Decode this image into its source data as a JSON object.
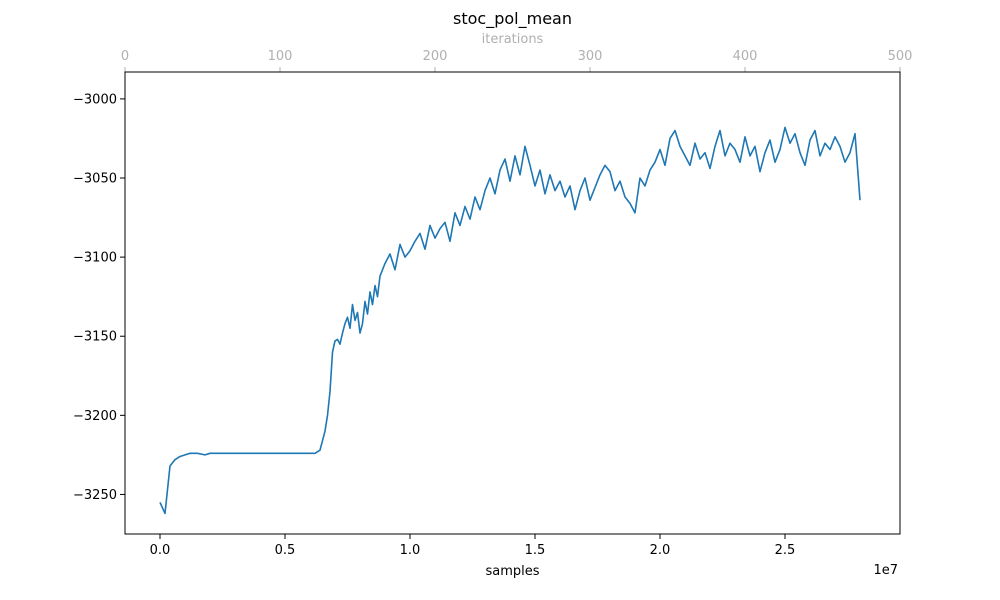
{
  "chart_data": {
    "type": "line",
    "title": "stoc_pol_mean",
    "xlabel": "samples",
    "x_offset_label": "1e7",
    "x_scale": 10000000,
    "xlim": [
      -0.14,
      2.96
    ],
    "x_ticks": [
      0.0,
      0.5,
      1.0,
      1.5,
      2.0,
      2.5
    ],
    "x_tick_labels": [
      "0.0",
      "0.5",
      "1.0",
      "1.5",
      "2.0",
      "2.5"
    ],
    "top_axis": {
      "label": "iterations",
      "lim": [
        0,
        500
      ],
      "ticks": [
        0,
        100,
        200,
        300,
        400,
        500
      ],
      "tick_labels": [
        "0",
        "100",
        "200",
        "300",
        "400",
        "500"
      ]
    },
    "ylabel": "",
    "ylim": [
      -3275,
      -2983
    ],
    "y_ticks": [
      -3250,
      -3200,
      -3150,
      -3100,
      -3050,
      -3000
    ],
    "y_tick_labels": [
      "−3250",
      "−3200",
      "−3150",
      "−3100",
      "−3050",
      "−3000"
    ],
    "grid": false,
    "color": "#1f77b4",
    "series": [
      {
        "x": [
          0.0,
          0.02,
          0.04,
          0.06,
          0.08,
          0.1,
          0.12,
          0.15,
          0.18,
          0.2,
          0.25,
          0.3,
          0.35,
          0.4,
          0.45,
          0.5,
          0.55,
          0.6,
          0.62,
          0.64,
          0.65,
          0.66,
          0.67,
          0.68,
          0.69,
          0.7,
          0.71,
          0.72,
          0.73,
          0.74,
          0.75,
          0.76,
          0.77,
          0.78,
          0.79,
          0.8,
          0.81,
          0.82,
          0.83,
          0.84,
          0.85,
          0.86,
          0.87,
          0.88,
          0.9,
          0.92,
          0.94,
          0.96,
          0.98,
          1.0,
          1.02,
          1.04,
          1.06,
          1.08,
          1.1,
          1.12,
          1.14,
          1.16,
          1.18,
          1.2,
          1.22,
          1.24,
          1.26,
          1.28,
          1.3,
          1.32,
          1.34,
          1.36,
          1.38,
          1.4,
          1.42,
          1.44,
          1.46,
          1.48,
          1.5,
          1.52,
          1.54,
          1.56,
          1.58,
          1.6,
          1.62,
          1.64,
          1.66,
          1.68,
          1.7,
          1.72,
          1.74,
          1.76,
          1.78,
          1.8,
          1.82,
          1.84,
          1.86,
          1.88,
          1.9,
          1.92,
          1.94,
          1.96,
          1.98,
          2.0,
          2.02,
          2.04,
          2.06,
          2.08,
          2.1,
          2.12,
          2.14,
          2.16,
          2.18,
          2.2,
          2.22,
          2.24,
          2.26,
          2.28,
          2.3,
          2.32,
          2.34,
          2.36,
          2.38,
          2.4,
          2.42,
          2.44,
          2.46,
          2.48,
          2.5,
          2.52,
          2.54,
          2.56,
          2.58,
          2.6,
          2.62,
          2.64,
          2.66,
          2.68,
          2.7,
          2.72,
          2.74,
          2.76,
          2.78,
          2.8
        ],
        "y": [
          -3255,
          -3262,
          -3232,
          -3228,
          -3226,
          -3225,
          -3224,
          -3224,
          -3225,
          -3224,
          -3224,
          -3224,
          -3224,
          -3224,
          -3224,
          -3224,
          -3224,
          -3224,
          -3224,
          -3222,
          -3216,
          -3210,
          -3200,
          -3185,
          -3160,
          -3153,
          -3152,
          -3155,
          -3148,
          -3142,
          -3138,
          -3145,
          -3130,
          -3140,
          -3135,
          -3148,
          -3142,
          -3128,
          -3136,
          -3122,
          -3130,
          -3118,
          -3125,
          -3112,
          -3104,
          -3098,
          -3108,
          -3092,
          -3100,
          -3096,
          -3090,
          -3085,
          -3095,
          -3080,
          -3088,
          -3082,
          -3078,
          -3090,
          -3072,
          -3080,
          -3068,
          -3076,
          -3062,
          -3070,
          -3058,
          -3050,
          -3060,
          -3045,
          -3038,
          -3052,
          -3036,
          -3048,
          -3030,
          -3042,
          -3055,
          -3045,
          -3060,
          -3048,
          -3058,
          -3052,
          -3062,
          -3055,
          -3070,
          -3058,
          -3050,
          -3064,
          -3056,
          -3048,
          -3042,
          -3046,
          -3058,
          -3052,
          -3062,
          -3066,
          -3072,
          -3050,
          -3055,
          -3045,
          -3040,
          -3032,
          -3042,
          -3025,
          -3020,
          -3030,
          -3036,
          -3042,
          -3028,
          -3038,
          -3034,
          -3044,
          -3030,
          -3020,
          -3036,
          -3028,
          -3032,
          -3040,
          -3024,
          -3036,
          -3030,
          -3046,
          -3034,
          -3026,
          -3040,
          -3032,
          -3018,
          -3028,
          -3022,
          -3034,
          -3042,
          -3026,
          -3020,
          -3036,
          -3028,
          -3032,
          -3024,
          -3030,
          -3040,
          -3034,
          -3022,
          -3064
        ]
      }
    ]
  }
}
